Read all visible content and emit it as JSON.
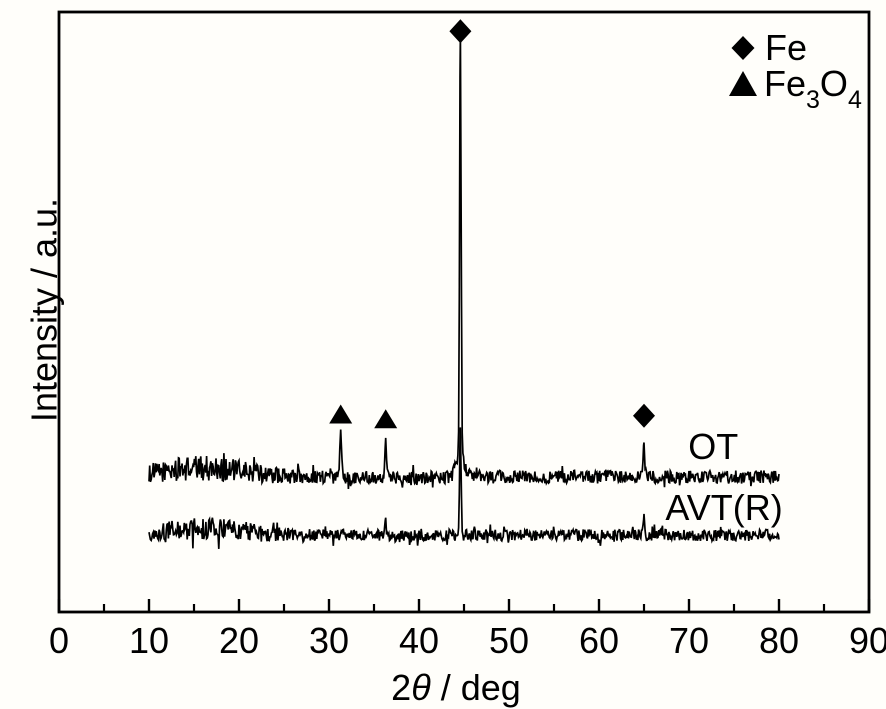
{
  "figure": {
    "background": "#fffefa",
    "ink": "#000000"
  },
  "axes": {
    "xlabel": {
      "prefix": "2",
      "theta": "θ",
      "suffix": " / deg"
    },
    "ylabel": "Intensity / a.u.",
    "xlim": [
      0,
      90
    ]
  },
  "legend": {
    "items": [
      {
        "marker": "diamond",
        "phase": "Fe",
        "label": "Fe"
      },
      {
        "marker": "triangle",
        "phase": "Fe3O4",
        "label_parts": {
          "base1": "Fe",
          "sub1": "3",
          "base2": "O",
          "sub2": "4"
        }
      }
    ]
  },
  "chart_data": {
    "type": "line",
    "title": "",
    "xlabel": "2θ / deg",
    "ylabel": "Intensity / a.u.",
    "xlim": [
      0,
      90
    ],
    "x_major_ticks": [
      0,
      10,
      20,
      30,
      40,
      50,
      60,
      70,
      80,
      90
    ],
    "x_minor_ticks": [
      5,
      15,
      25,
      35,
      45,
      55,
      65,
      75,
      85
    ],
    "x_data_range_deg": [
      10,
      80
    ],
    "y_axis_note": "arbitrary units, no tick marks; heights given as fraction of full plot height",
    "grid": false,
    "legend_position": "top-right",
    "series": [
      {
        "name": "OT",
        "baseline": 0.225,
        "noise_amplitude": 0.011,
        "amorphous_hump": {
          "center_deg": 16,
          "sigma_deg": 4.5,
          "height": 0.015
        },
        "peaks": [
          {
            "two_theta_deg": 31.3,
            "height": 0.078,
            "phase": "Fe3O4"
          },
          {
            "two_theta_deg": 36.3,
            "height": 0.067,
            "phase": "Fe3O4"
          },
          {
            "two_theta_deg": 44.6,
            "height": 0.707,
            "phase": "Fe"
          },
          {
            "two_theta_deg": 65.0,
            "height": 0.06,
            "phase": "Fe"
          }
        ],
        "label_anchor": {
          "x_deg": 72.7,
          "y": 0.255
        }
      },
      {
        "name": "AVT(R)",
        "baseline": 0.128,
        "noise_amplitude": 0.0095,
        "amorphous_hump": {
          "center_deg": 16,
          "sigma_deg": 4.5,
          "height": 0.011
        },
        "peaks": [
          {
            "two_theta_deg": 36.3,
            "height": 0.027,
            "phase": "Fe3O4"
          },
          {
            "two_theta_deg": 44.6,
            "height": 0.18,
            "phase": "Fe"
          },
          {
            "two_theta_deg": 65.0,
            "height": 0.037,
            "phase": "Fe"
          }
        ],
        "label_anchor": {
          "x_deg": 73.9,
          "y": 0.153
        }
      }
    ],
    "peak_markers": [
      {
        "marker": "triangle",
        "phase": "Fe3O4",
        "x_deg": 31.3,
        "y": 0.33
      },
      {
        "marker": "triangle",
        "phase": "Fe3O4",
        "x_deg": 36.3,
        "y": 0.322
      },
      {
        "marker": "diamond",
        "phase": "Fe",
        "x_deg": 44.6,
        "y": 0.968
      },
      {
        "marker": "diamond",
        "phase": "Fe",
        "x_deg": 65.0,
        "y": 0.327
      }
    ]
  }
}
